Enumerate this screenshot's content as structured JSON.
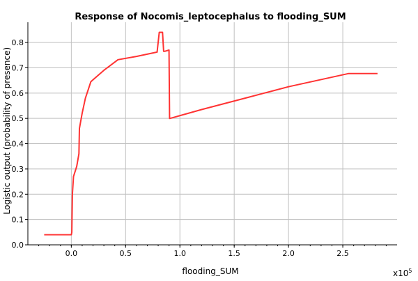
{
  "chart_data": {
    "type": "line",
    "title": "Response of Nocomis_leptocephalus to flooding_SUM",
    "xlabel": "flooding_SUM",
    "ylabel": "Logistic output (probability of presence)",
    "x_multiplier_label": "x10",
    "x_multiplier_exponent": "5",
    "xlim": [
      -0.4,
      3.0
    ],
    "ylim": [
      0.0,
      0.88
    ],
    "xticks": [
      0.0,
      0.5,
      1.0,
      1.5,
      2.0,
      2.5
    ],
    "xtick_labels": [
      "0.0",
      "0.5",
      "1.0",
      "1.5",
      "2.0",
      "2.5"
    ],
    "yticks": [
      0.0,
      0.1,
      0.2,
      0.3,
      0.4,
      0.5,
      0.6,
      0.7,
      0.8
    ],
    "ytick_labels": [
      "0.0",
      "0.1",
      "0.2",
      "0.3",
      "0.4",
      "0.5",
      "0.6",
      "0.7",
      "0.8"
    ],
    "grid": true,
    "color": "#ff3333",
    "series": [
      {
        "x": [
          -0.25,
          0.0,
          0.005,
          0.01,
          0.02,
          0.05,
          0.07,
          0.075,
          0.1,
          0.13,
          0.18,
          0.22,
          0.3,
          0.43,
          0.6,
          0.79,
          0.81,
          0.84,
          0.85,
          0.86,
          0.9,
          0.905,
          0.91,
          1.2,
          1.6,
          2.0,
          2.55,
          2.82
        ],
        "y": [
          0.04,
          0.04,
          0.05,
          0.2,
          0.27,
          0.31,
          0.36,
          0.46,
          0.52,
          0.58,
          0.645,
          0.66,
          0.69,
          0.732,
          0.745,
          0.762,
          0.84,
          0.84,
          0.765,
          0.765,
          0.77,
          0.5,
          0.5,
          0.535,
          0.58,
          0.625,
          0.677,
          0.677
        ]
      }
    ]
  }
}
